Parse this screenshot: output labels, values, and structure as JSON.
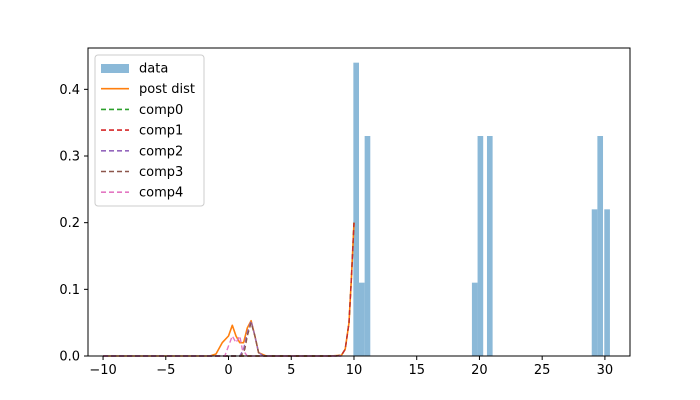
{
  "chart_data": {
    "type": "bar",
    "title": "",
    "xlabel": "",
    "ylabel": "",
    "xlim": [
      -11.2,
      32.0
    ],
    "ylim": [
      0,
      0.462
    ],
    "xticks": [
      -10,
      -5,
      0,
      5,
      10,
      15,
      20,
      25,
      30
    ],
    "xtick_labels": [
      "−10",
      "−5",
      "0",
      "5",
      "10",
      "15",
      "20",
      "25",
      "30"
    ],
    "yticks": [
      0.0,
      0.1,
      0.2,
      0.3,
      0.4
    ],
    "ytick_labels": [
      "0.0",
      "0.1",
      "0.2",
      "0.3",
      "0.4"
    ],
    "grid": false,
    "legend_position": "top-left",
    "legend": [
      {
        "label": "data",
        "kind": "patch",
        "color": "#8bb9d8",
        "dash": ""
      },
      {
        "label": "post dist",
        "kind": "line",
        "color": "#ff7f0e",
        "dash": ""
      },
      {
        "label": "comp0",
        "kind": "line",
        "color": "#2ca02c",
        "dash": "5,3"
      },
      {
        "label": "comp1",
        "kind": "line",
        "color": "#d62728",
        "dash": "5,3"
      },
      {
        "label": "comp2",
        "kind": "line",
        "color": "#9467bd",
        "dash": "5,3"
      },
      {
        "label": "comp3",
        "kind": "line",
        "color": "#8c564b",
        "dash": "5,3"
      },
      {
        "label": "comp4",
        "kind": "line",
        "color": "#e377c2",
        "dash": "5,3"
      }
    ],
    "histogram": {
      "name": "data",
      "color": "#8bb9d8",
      "bin_width": 0.45,
      "bins": [
        {
          "x0": 9.95,
          "value": 0.44
        },
        {
          "x0": 10.4,
          "value": 0.11
        },
        {
          "x0": 10.85,
          "value": 0.33
        },
        {
          "x0": 19.4,
          "value": 0.11
        },
        {
          "x0": 19.85,
          "value": 0.33
        },
        {
          "x0": 20.6,
          "value": 0.33
        },
        {
          "x0": 28.95,
          "value": 0.22
        },
        {
          "x0": 29.4,
          "value": 0.33
        },
        {
          "x0": 29.95,
          "value": 0.22
        }
      ]
    },
    "series": [
      {
        "name": "post dist",
        "color": "#ff7f0e",
        "dash": "",
        "width": 1.6,
        "x": [
          -10,
          -1.5,
          -1.0,
          -0.5,
          0,
          0.3,
          0.6,
          0.9,
          1.2,
          1.5,
          1.8,
          2.1,
          2.4,
          3.0,
          5.0,
          8.0,
          9.0,
          9.3,
          9.6,
          9.8,
          10.0
        ],
        "y": [
          0.0,
          0.0,
          0.003,
          0.02,
          0.03,
          0.046,
          0.03,
          0.02,
          0.02,
          0.042,
          0.053,
          0.03,
          0.005,
          0.0,
          0.0,
          0.0,
          0.001,
          0.01,
          0.05,
          0.12,
          0.2
        ]
      },
      {
        "name": "comp0",
        "color": "#2ca02c",
        "dash": "5,3",
        "width": 1.4,
        "x": [
          -10,
          8.5,
          9.0,
          9.3,
          9.6,
          9.8,
          10.0
        ],
        "y": [
          0.0,
          0.0,
          0.001,
          0.01,
          0.05,
          0.12,
          0.2
        ]
      },
      {
        "name": "comp1",
        "color": "#d62728",
        "dash": "5,3",
        "width": 1.4,
        "x": [
          -10,
          8.5,
          9.0,
          9.3,
          9.6,
          9.8,
          10.0
        ],
        "y": [
          0.0,
          0.0,
          0.001,
          0.01,
          0.05,
          0.12,
          0.2
        ]
      },
      {
        "name": "comp2",
        "color": "#9467bd",
        "dash": "5,3",
        "width": 1.4,
        "x": [
          -10,
          0.9,
          1.2,
          1.5,
          1.8,
          2.1,
          2.4,
          2.8,
          9.0
        ],
        "y": [
          0.0,
          0.0,
          0.01,
          0.035,
          0.053,
          0.03,
          0.005,
          0.0,
          0.0
        ]
      },
      {
        "name": "comp3",
        "color": "#8c564b",
        "dash": "5,3",
        "width": 1.4,
        "x": [
          -10,
          1.0,
          1.3,
          1.5,
          1.8,
          2.1,
          2.4,
          2.8,
          9.0
        ],
        "y": [
          0.0,
          0.0,
          0.01,
          0.03,
          0.05,
          0.03,
          0.005,
          0.0,
          0.0
        ]
      },
      {
        "name": "comp4",
        "color": "#e377c2",
        "dash": "5,3",
        "width": 1.4,
        "x": [
          -10,
          -0.3,
          0,
          0.3,
          0.6,
          0.9,
          1.1,
          1.5,
          9.0
        ],
        "y": [
          0.0,
          0.0,
          0.015,
          0.03,
          0.02,
          0.03,
          0.01,
          0.0,
          0.0
        ]
      }
    ]
  }
}
